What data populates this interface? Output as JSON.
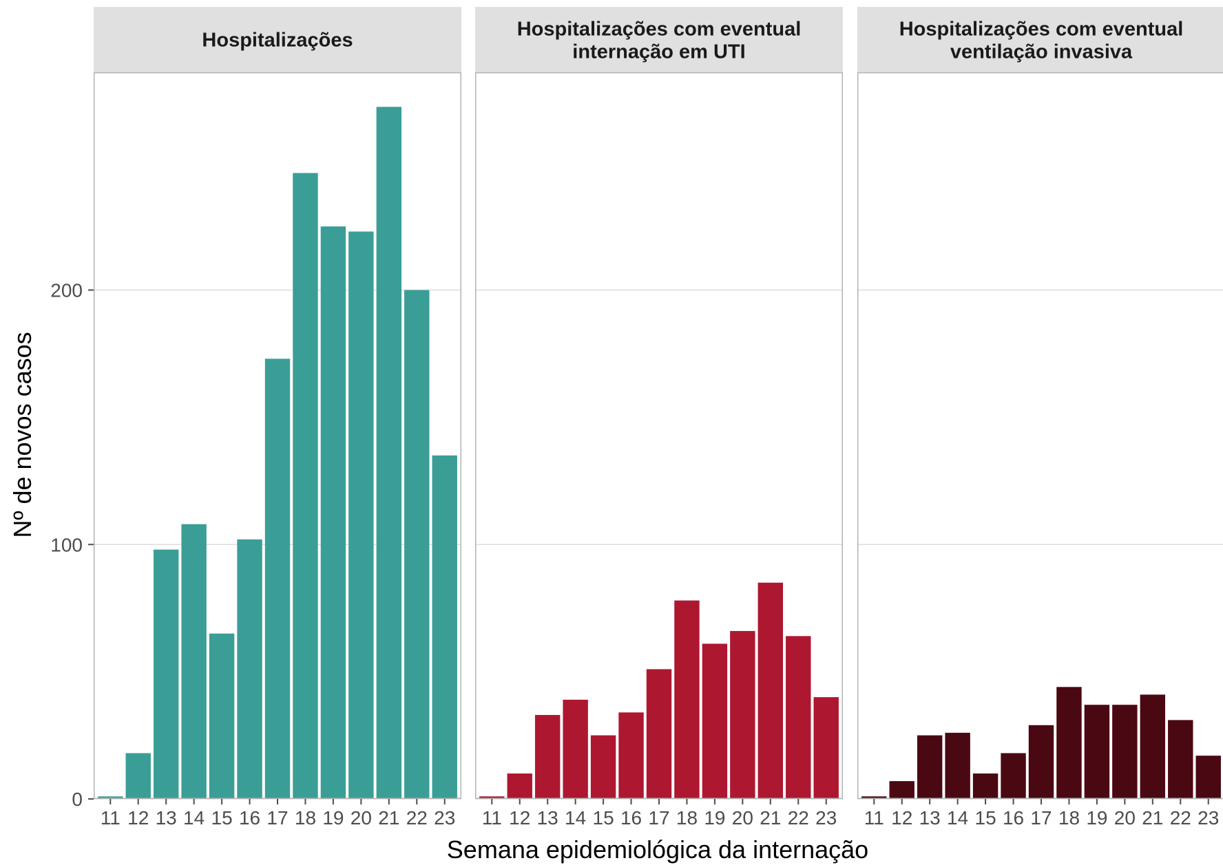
{
  "chart_data": {
    "type": "bar",
    "xlabel": "Semana epidemiológica da internação",
    "ylabel": "Nº de novos casos",
    "ylim": [
      0,
      272
    ],
    "yticks": [
      0,
      100,
      200
    ],
    "ytick_labels": [
      "0",
      "100",
      "200"
    ],
    "grid": true,
    "categories": [
      "11",
      "12",
      "13",
      "14",
      "15",
      "16",
      "17",
      "18",
      "19",
      "20",
      "21",
      "22",
      "23"
    ],
    "panels": [
      {
        "strip_lines": [
          "Hospitalizações"
        ],
        "color": "#3a9e97",
        "values": [
          1,
          18,
          98,
          108,
          65,
          102,
          173,
          246,
          225,
          223,
          272,
          200,
          135
        ]
      },
      {
        "strip_lines": [
          "Hospitalizações com eventual",
          "internação em UTI"
        ],
        "color": "#ae1730",
        "values": [
          1,
          10,
          33,
          39,
          25,
          34,
          51,
          78,
          61,
          66,
          85,
          64,
          40
        ]
      },
      {
        "strip_lines": [
          "Hospitalizações com eventual",
          "ventilação invasiva"
        ],
        "color": "#4a0812",
        "values": [
          1,
          7,
          25,
          26,
          10,
          18,
          29,
          44,
          37,
          37,
          41,
          31,
          17
        ]
      }
    ]
  }
}
